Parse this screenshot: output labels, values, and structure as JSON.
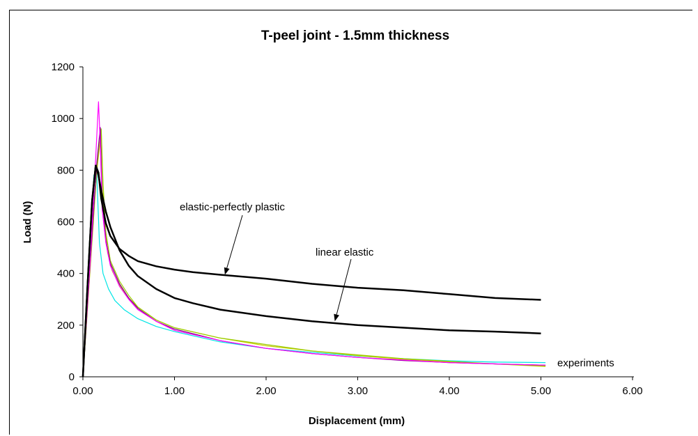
{
  "chart_data": {
    "type": "line",
    "title": "T-peel joint - 1.5mm thickness",
    "xlabel": "Displacement (mm)",
    "ylabel": "Load (N)",
    "xlim": [
      0,
      6
    ],
    "ylim": [
      0,
      1200
    ],
    "x_ticks": [
      "0.00",
      "1.00",
      "2.00",
      "3.00",
      "4.00",
      "5.00",
      "6.00"
    ],
    "y_ticks": [
      "0",
      "200",
      "400",
      "600",
      "800",
      "1000",
      "1200"
    ],
    "grid": false,
    "legend": "none",
    "annotations": [
      {
        "text": "elastic-perfectly plastic",
        "points_to": [
          1.55,
          395
        ]
      },
      {
        "text": "linear elastic",
        "points_to": [
          2.75,
          215
        ]
      },
      {
        "text": "experiments",
        "points_to": null
      }
    ],
    "series": [
      {
        "key": "elastic_perfectly_plastic",
        "color": "#000000",
        "x": [
          0,
          0.05,
          0.1,
          0.14,
          0.17,
          0.2,
          0.25,
          0.3,
          0.4,
          0.5,
          0.6,
          0.8,
          1.0,
          1.2,
          1.5,
          2.0,
          2.5,
          3.0,
          3.5,
          4.0,
          4.5,
          5.0
        ],
        "y": [
          0,
          350,
          680,
          818,
          790,
          690,
          595,
          545,
          495,
          468,
          448,
          428,
          415,
          405,
          395,
          380,
          360,
          345,
          335,
          320,
          305,
          298
        ]
      },
      {
        "key": "linear_elastic",
        "color": "#000000",
        "x": [
          0,
          0.05,
          0.1,
          0.14,
          0.17,
          0.2,
          0.25,
          0.3,
          0.4,
          0.5,
          0.6,
          0.8,
          1.0,
          1.2,
          1.5,
          2.0,
          2.5,
          3.0,
          3.5,
          4.0,
          4.5,
          5.0
        ],
        "y": [
          0,
          350,
          680,
          818,
          780,
          720,
          640,
          580,
          490,
          430,
          390,
          340,
          305,
          285,
          260,
          235,
          215,
          200,
          190,
          180,
          175,
          168
        ]
      },
      {
        "key": "exp_magenta",
        "color": "#ff00ff",
        "x": [
          0,
          0.08,
          0.14,
          0.17,
          0.19,
          0.21,
          0.25,
          0.3,
          0.4,
          0.5,
          0.6,
          0.8,
          1.0,
          1.5,
          2.0,
          2.5,
          3.0,
          3.5,
          4.0,
          4.5,
          5.05
        ],
        "y": [
          0,
          450,
          850,
          1065,
          900,
          650,
          520,
          430,
          350,
          300,
          260,
          215,
          180,
          140,
          110,
          90,
          75,
          65,
          55,
          50,
          45
        ]
      },
      {
        "key": "exp_olive",
        "color": "#99cc00",
        "x": [
          0,
          0.08,
          0.15,
          0.2,
          0.22,
          0.25,
          0.3,
          0.4,
          0.5,
          0.6,
          0.8,
          1.0,
          1.5,
          2.0,
          2.5,
          3.0,
          3.5,
          4.0,
          4.5,
          5.05
        ],
        "y": [
          0,
          430,
          800,
          960,
          750,
          560,
          450,
          370,
          315,
          270,
          220,
          190,
          150,
          125,
          100,
          85,
          70,
          60,
          50,
          42
        ]
      },
      {
        "key": "exp_purple",
        "color": "#800080",
        "x": [
          0,
          0.08,
          0.15,
          0.19,
          0.21,
          0.25,
          0.3,
          0.4,
          0.5,
          0.6,
          0.8,
          1.0,
          1.5,
          2.0,
          2.5,
          3.0,
          3.5,
          4.0,
          4.5,
          5.05
        ],
        "y": [
          0,
          440,
          820,
          965,
          700,
          530,
          440,
          360,
          305,
          265,
          215,
          185,
          140,
          110,
          90,
          75,
          63,
          55,
          50,
          45
        ]
      },
      {
        "key": "exp_cyan",
        "color": "#00e5e5",
        "x": [
          0,
          0.06,
          0.12,
          0.15,
          0.18,
          0.22,
          0.28,
          0.35,
          0.45,
          0.6,
          0.8,
          1.0,
          1.5,
          2.0,
          2.5,
          3.0,
          3.5,
          4.0,
          4.5,
          5.05
        ],
        "y": [
          0,
          380,
          780,
          800,
          520,
          400,
          340,
          295,
          260,
          225,
          195,
          175,
          135,
          110,
          95,
          80,
          70,
          62,
          57,
          55
        ]
      },
      {
        "key": "exp_yellow",
        "color": "#cccc00",
        "x": [
          0,
          0.08,
          0.15,
          0.2,
          0.23,
          0.27,
          0.32,
          0.4,
          0.5,
          0.6,
          0.8,
          1.0,
          1.5,
          2.0,
          2.5,
          3.0,
          3.5,
          4.0,
          4.5,
          5.05
        ],
        "y": [
          0,
          420,
          790,
          950,
          620,
          480,
          410,
          355,
          305,
          270,
          220,
          190,
          150,
          120,
          100,
          82,
          68,
          58,
          50,
          40
        ]
      }
    ]
  }
}
